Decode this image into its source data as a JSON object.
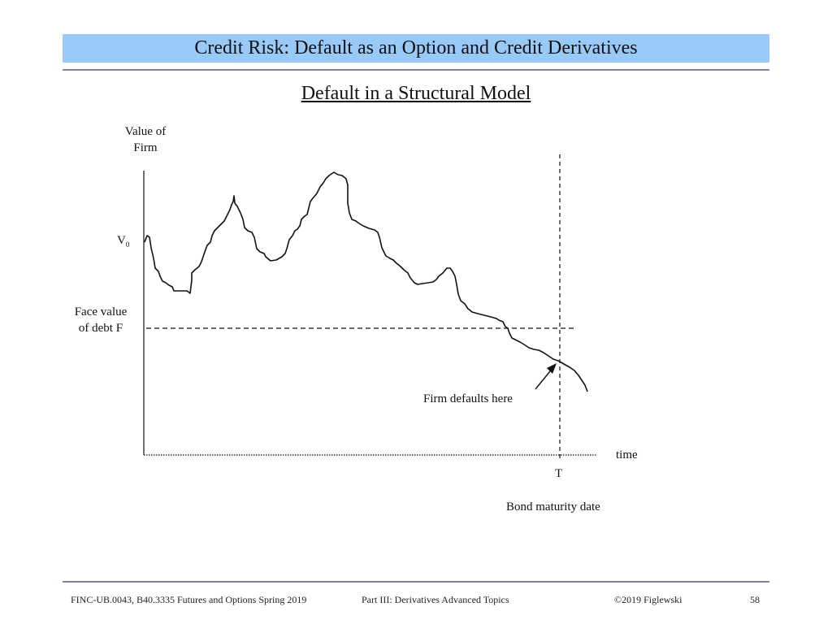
{
  "header": {
    "title": "Credit Risk: Default as an Option and Credit Derivatives"
  },
  "slide": {
    "subtitle": "Default in a Structural Model"
  },
  "diagram": {
    "y_axis_label_line1": "Value of",
    "y_axis_label_line2": "Firm",
    "v0_label": "V",
    "v0_subscript": "0",
    "face_value_line1": "Face value",
    "face_value_line2": "of debt  F",
    "x_axis_label": "time",
    "maturity_label": "T",
    "maturity_caption": "Bond maturity date",
    "default_annotation": "Firm defaults here"
  },
  "footer": {
    "course": "FINC-UB.0043, B40.3335  Futures and Options  Spring 2019",
    "part": "Part III: Derivatives Advanced Topics",
    "copyright": "©2019 Figlewski",
    "page_number": "58"
  }
}
